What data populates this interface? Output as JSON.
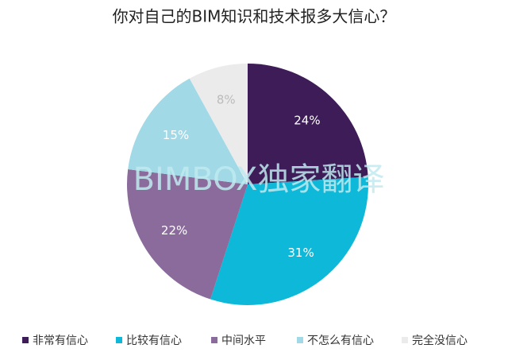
{
  "chart_data": {
    "type": "pie",
    "title": "你对自己的BIM知识和技术报多大信心？",
    "watermark": "BIMBOX独家翻译",
    "categories": [
      "非常有信心",
      "比较有信心",
      "中间水平",
      "不怎么有信心",
      "完全没信心"
    ],
    "values": [
      24,
      31,
      22,
      15,
      8
    ],
    "value_labels": [
      "24%",
      "31%",
      "22%",
      "15%",
      "8%"
    ],
    "colors": [
      "#3e1c57",
      "#0db8d8",
      "#8a6b9c",
      "#a1d9e7",
      "#ebebeb"
    ],
    "legend": "bottom"
  }
}
